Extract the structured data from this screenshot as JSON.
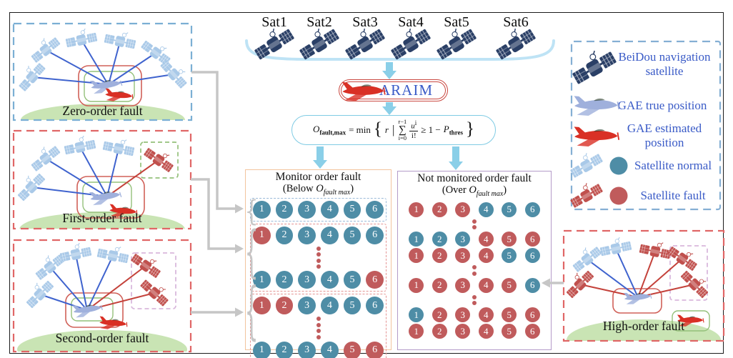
{
  "colors": {
    "satellite_normal": "#4E8DA6",
    "satellite_fault": "#C05B5C",
    "flow_arrow": "#8ACFE8",
    "bracket_blue": "#BEE3F5",
    "connector_gray": "#C6C6C6",
    "monitor_border": "#F2C49E",
    "unmonitored_border": "#B49BC9",
    "araim_border": "#C9473F",
    "formula_border": "#7FCBE4",
    "label_text_blue": "#3A5BC7",
    "ground_green": "#C9E4B4",
    "beidou_navy": "#2A3F66",
    "sat_blue_light": "#A9C9E8",
    "sat_red": "#C0504D",
    "line_blue": "#3F63CE",
    "line_red": "#C4423B",
    "plane_true": "#9FB0DC",
    "plane_estimated": "#D93025",
    "panel_blue_dashed": "#7BAFD4",
    "panel_red_dashed": "#E06666",
    "inner_green": "#94C07A",
    "inner_red_box": "#D06058",
    "lavender_dashed": "#D9B8DC",
    "legend_border": "#85AFD4"
  },
  "top": {
    "sat_labels": [
      "Sat1",
      "Sat2",
      "Sat3",
      "Sat4",
      "Sat5",
      "Sat6"
    ],
    "araim_label": "ARAIM"
  },
  "formula": {
    "lhs": "O",
    "lhs_sub": "fault,max",
    "eq": "= min",
    "open": "{",
    "r": "r",
    "bar": "|",
    "sum_top": "r−1",
    "sigma": "∑",
    "sum_bot": "i=0",
    "num_base": "u",
    "num_sup": "i",
    "den": "i!",
    "rhs": "≥ 1 −",
    "p": "P",
    "p_sub": "thres",
    "close": "}"
  },
  "monitor_box": {
    "title": "Monitor order fault",
    "subtitle": {
      "pre": "(Below ",
      "var": "O",
      "sub": "fault max",
      "post": ")"
    },
    "groups": [
      {
        "border": "blue",
        "rows": [
          {
            "type": "circles",
            "states": [
              "n",
              "n",
              "n",
              "n",
              "n",
              "n"
            ]
          }
        ]
      },
      {
        "border": "red",
        "rows": [
          {
            "type": "circles",
            "states": [
              "f",
              "n",
              "n",
              "n",
              "n",
              "n"
            ]
          },
          {
            "type": "dots",
            "count": 4
          },
          {
            "type": "circles",
            "states": [
              "n",
              "n",
              "n",
              "n",
              "n",
              "f"
            ]
          }
        ]
      },
      {
        "border": "red",
        "rows": [
          {
            "type": "circles",
            "states": [
              "f",
              "f",
              "n",
              "n",
              "n",
              "n"
            ]
          },
          {
            "type": "dots",
            "count": 4
          },
          {
            "type": "circles",
            "states": [
              "n",
              "n",
              "n",
              "n",
              "f",
              "f"
            ]
          }
        ]
      }
    ]
  },
  "unmonitored_box": {
    "title": "Not monitored order fault",
    "subtitle": {
      "pre": "(Over ",
      "var": "O",
      "sub": "fault max",
      "post": ")"
    },
    "rows": [
      {
        "type": "circles",
        "states": [
          "f",
          "f",
          "f",
          "n",
          "n",
          "n"
        ]
      },
      {
        "type": "dots",
        "count": 2
      },
      {
        "type": "circles",
        "states": [
          "n",
          "n",
          "n",
          "f",
          "f",
          "f"
        ]
      },
      {
        "type": "circles",
        "states": [
          "f",
          "f",
          "f",
          "f",
          "n",
          "n"
        ]
      },
      {
        "type": "dots",
        "count": 2
      },
      {
        "type": "circles",
        "states": [
          "f",
          "f",
          "f",
          "f",
          "f",
          "n"
        ]
      },
      {
        "type": "dots",
        "count": 2
      },
      {
        "type": "circles",
        "states": [
          "n",
          "f",
          "f",
          "f",
          "f",
          "f"
        ]
      },
      {
        "type": "circles",
        "states": [
          "f",
          "f",
          "f",
          "f",
          "f",
          "f"
        ]
      }
    ]
  },
  "circle_labels": [
    "1",
    "2",
    "3",
    "4",
    "5",
    "6"
  ],
  "panels": [
    {
      "id": "zero",
      "label": "Zero-order fault"
    },
    {
      "id": "first",
      "label": "First-order fault"
    },
    {
      "id": "second",
      "label": "Second-order fault"
    },
    {
      "id": "high",
      "label": "High-order fault"
    }
  ],
  "legend": {
    "items": [
      {
        "icon": "beidou-satellite-icon",
        "label": "BeiDou navigation satellite"
      },
      {
        "icon": "gae-true-plane-icon",
        "label": "GAE true position"
      },
      {
        "icon": "gae-estimated-plane-icon",
        "label": "GAE estimated position"
      },
      {
        "icon": "satellite-normal-icon",
        "label": "Satellite normal"
      },
      {
        "icon": "satellite-fault-icon",
        "label": "Satellite fault"
      }
    ]
  }
}
